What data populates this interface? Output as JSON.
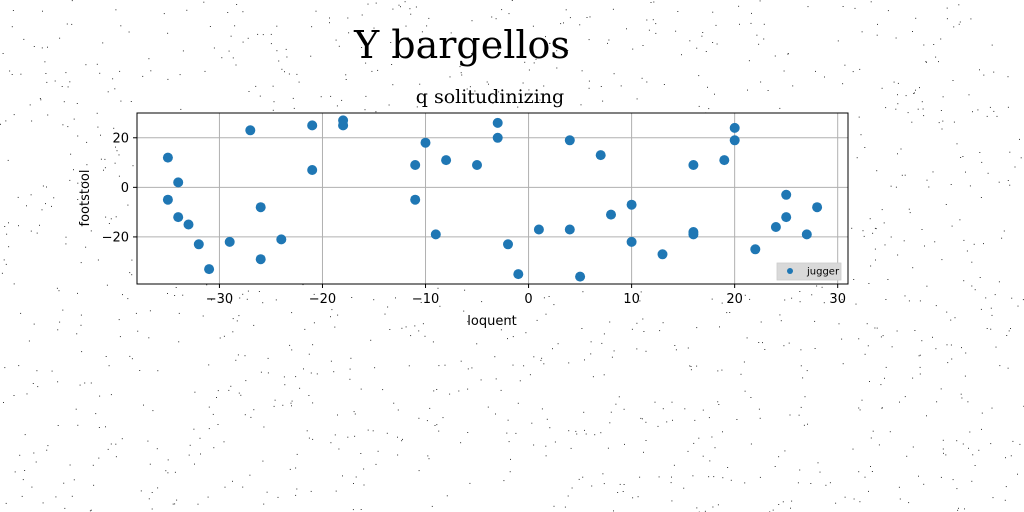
{
  "chart_data": {
    "type": "scatter",
    "suptitle": "Y bargellos",
    "title": "q solitudinizing",
    "xlabel": "loquent",
    "ylabel": "footstool",
    "xlim": [
      -38,
      31
    ],
    "ylim": [
      -39,
      30
    ],
    "xticks": [
      -30,
      -20,
      -10,
      0,
      10,
      20,
      30
    ],
    "yticks": [
      -20,
      0,
      20
    ],
    "grid": true,
    "legend_position": "lower-right",
    "series": [
      {
        "name": "jugger",
        "color": "#1f77b4",
        "points": [
          [
            -35,
            12
          ],
          [
            -35,
            -5
          ],
          [
            -34,
            2
          ],
          [
            -34,
            -12
          ],
          [
            -33,
            -15
          ],
          [
            -32,
            -23
          ],
          [
            -31,
            -33
          ],
          [
            -29,
            -22
          ],
          [
            -27,
            23
          ],
          [
            -26,
            -8
          ],
          [
            -26,
            -29
          ],
          [
            -24,
            -21
          ],
          [
            -21,
            25
          ],
          [
            -21,
            7
          ],
          [
            -18,
            27
          ],
          [
            -18,
            25
          ],
          [
            -11,
            9
          ],
          [
            -11,
            -5
          ],
          [
            -10,
            18
          ],
          [
            -9,
            -19
          ],
          [
            -8,
            11
          ],
          [
            -5,
            9
          ],
          [
            -3,
            26
          ],
          [
            -3,
            20
          ],
          [
            -2,
            -23
          ],
          [
            -1,
            -35
          ],
          [
            1,
            -17
          ],
          [
            4,
            19
          ],
          [
            4,
            -17
          ],
          [
            5,
            -36
          ],
          [
            7,
            13
          ],
          [
            8,
            -11
          ],
          [
            10,
            -7
          ],
          [
            10,
            -22
          ],
          [
            13,
            -27
          ],
          [
            16,
            9
          ],
          [
            16,
            -18
          ],
          [
            16,
            -19
          ],
          [
            19,
            11
          ],
          [
            20,
            24
          ],
          [
            20,
            19
          ],
          [
            22,
            -25
          ],
          [
            24,
            -16
          ],
          [
            25,
            -3
          ],
          [
            25,
            -12
          ],
          [
            27,
            -19
          ],
          [
            28,
            -8
          ]
        ]
      }
    ]
  }
}
